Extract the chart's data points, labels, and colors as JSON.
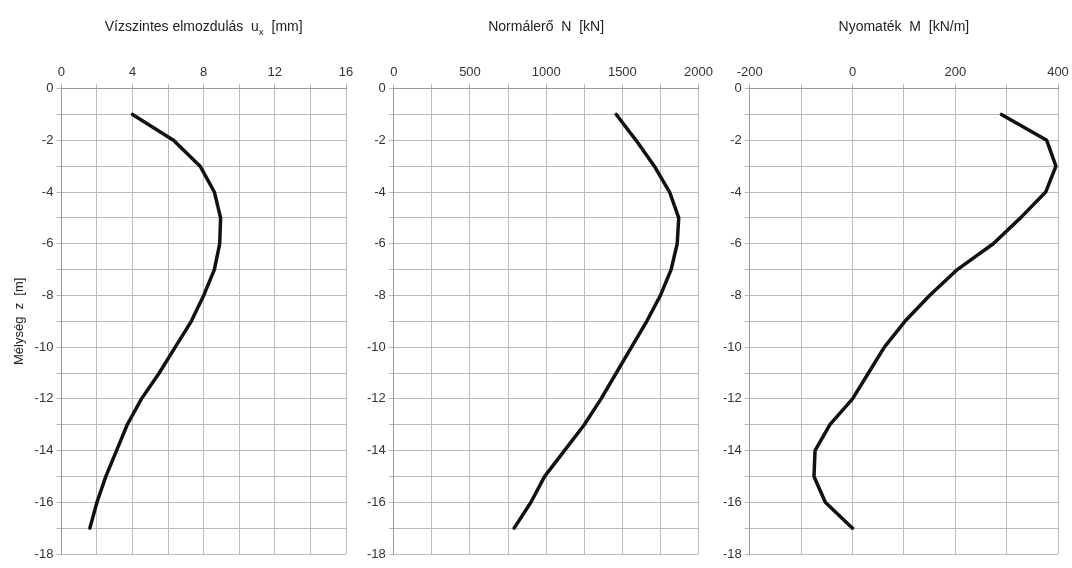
{
  "chart_data": [
    {
      "type": "line",
      "xlabel": "Vízszintes elmozdulás  u$_{x}$  [mm]",
      "ylabel": "Mélység  z  [m]",
      "xlim": [
        0,
        16
      ],
      "xticks": [
        0,
        {
          "value": 2,
          "label": null
        },
        4,
        {
          "value": 6,
          "label": null
        },
        8,
        {
          "value": 10,
          "label": null
        },
        12,
        {
          "value": 14,
          "label": null
        },
        16
      ],
      "ylim": [
        -18,
        0
      ],
      "yticks": [
        -18,
        {
          "value": -17,
          "label": null
        },
        -16,
        {
          "value": -15,
          "label": null
        },
        -14,
        {
          "value": -13,
          "label": null
        },
        -12,
        {
          "value": -11,
          "label": null
        },
        -10,
        {
          "value": -9,
          "label": null
        },
        -8,
        {
          "value": -7,
          "label": null
        },
        -6,
        {
          "value": -5,
          "label": null
        },
        -4,
        {
          "value": -3,
          "label": null
        },
        -2,
        {
          "value": -1,
          "label": null
        },
        0
      ],
      "grid": true,
      "legend": false,
      "marker": "none",
      "line_style": "solid",
      "series": [
        {
          "color": "#111111",
          "x": [
            4.0,
            6.3,
            7.8,
            8.6,
            8.95,
            8.9,
            8.6,
            8.0,
            7.3,
            6.4,
            5.5,
            4.5,
            3.7,
            3.1,
            2.5,
            2.0,
            1.6
          ],
          "values": [
            -1,
            -2,
            -3,
            -4,
            -5,
            -6,
            -7,
            -8,
            -9,
            -10,
            -11,
            -12,
            -13,
            -14,
            -15,
            -16,
            -17
          ]
        }
      ]
    },
    {
      "type": "line",
      "xlabel": "Normálerő  N  [kN]",
      "xlim": [
        0,
        2000
      ],
      "xticks": [
        0,
        {
          "value": 250,
          "label": null
        },
        500,
        {
          "value": 750,
          "label": null
        },
        1000,
        {
          "value": 1250,
          "label": null
        },
        1500,
        {
          "value": 1750,
          "label": null
        },
        2000
      ],
      "ylim": [
        -18,
        0
      ],
      "yticks": [
        -18,
        {
          "value": -17,
          "label": null
        },
        -16,
        {
          "value": -15,
          "label": null
        },
        -14,
        {
          "value": -13,
          "label": null
        },
        -12,
        {
          "value": -11,
          "label": null
        },
        -10,
        {
          "value": -9,
          "label": null
        },
        -8,
        {
          "value": -7,
          "label": null
        },
        -6,
        {
          "value": -5,
          "label": null
        },
        -4,
        {
          "value": -3,
          "label": null
        },
        -2,
        {
          "value": -1,
          "label": null
        },
        0
      ],
      "grid": true,
      "legend": false,
      "marker": "none",
      "line_style": "solid",
      "series": [
        {
          "color": "#111111",
          "x": [
            1460,
            1590,
            1710,
            1810,
            1870,
            1860,
            1820,
            1750,
            1660,
            1560,
            1460,
            1360,
            1250,
            1120,
            990,
            900,
            790
          ],
          "values": [
            -1,
            -2,
            -3,
            -4,
            -5,
            -6,
            -7,
            -8,
            -9,
            -10,
            -11,
            -12,
            -13,
            -14,
            -15,
            -16,
            -17
          ]
        }
      ]
    },
    {
      "type": "line",
      "xlabel": "Nyomaték  M  [kN/m]",
      "xlim": [
        -200,
        400
      ],
      "xticks": [
        -200,
        {
          "value": -100,
          "label": null
        },
        0,
        {
          "value": 100,
          "label": null
        },
        200,
        {
          "value": 300,
          "label": null
        },
        400
      ],
      "ylim": [
        -18,
        0
      ],
      "yticks": [
        -18,
        {
          "value": -17,
          "label": null
        },
        -16,
        {
          "value": -15,
          "label": null
        },
        -14,
        {
          "value": -13,
          "label": null
        },
        -12,
        {
          "value": -11,
          "label": null
        },
        -10,
        {
          "value": -9,
          "label": null
        },
        -8,
        {
          "value": -7,
          "label": null
        },
        -6,
        {
          "value": -5,
          "label": null
        },
        -4,
        {
          "value": -3,
          "label": null
        },
        -2,
        {
          "value": -1,
          "label": null
        },
        0
      ],
      "grid": true,
      "legend": false,
      "marker": "none",
      "line_style": "solid",
      "series": [
        {
          "color": "#111111",
          "x": [
            290,
            378,
            396,
            376,
            327,
            274,
            204,
            150,
            102,
            62,
            31,
            0,
            -44,
            -73,
            -75,
            -53,
            0
          ],
          "values": [
            -1,
            -2,
            -3,
            -4,
            -5,
            -6,
            -7,
            -8,
            -9,
            -10,
            -11,
            -12,
            -13,
            -14,
            -15,
            -16,
            -17
          ]
        }
      ]
    }
  ]
}
